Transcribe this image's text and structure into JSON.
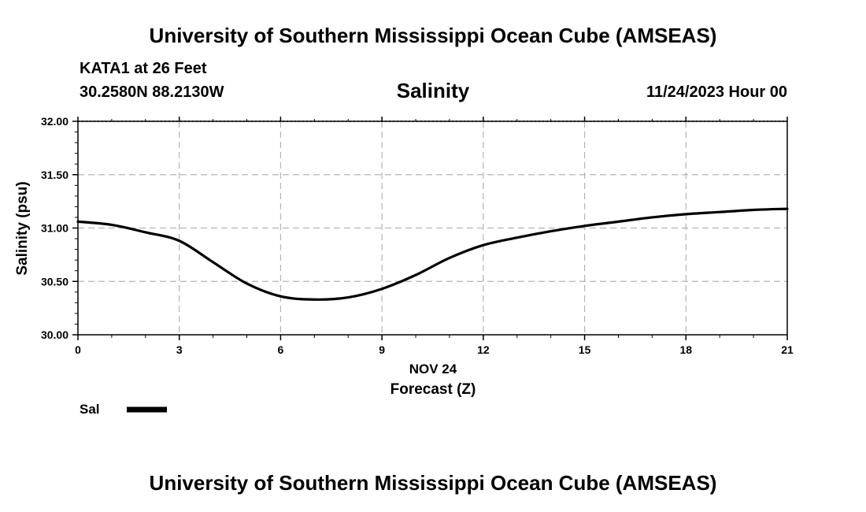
{
  "header": {
    "title": "University of Southern Mississippi Ocean Cube (AMSEAS)",
    "station": "KATA1 at 26 Feet",
    "coordinates": "30.2580N  88.2130W",
    "parameter": "Salinity",
    "datetime": "11/24/2023 Hour 00"
  },
  "footer": {
    "title": "University of Southern Mississippi Ocean Cube (AMSEAS)"
  },
  "chart_data": {
    "type": "line",
    "title": "Salinity",
    "xlabel": "Forecast (Z)",
    "xlabel_date": "NOV 24",
    "ylabel": "Salinity (psu)",
    "xlim": [
      0,
      21
    ],
    "ylim": [
      30.0,
      32.0
    ],
    "xticks": [
      0,
      3,
      6,
      9,
      12,
      15,
      18,
      21
    ],
    "yticks": [
      "30.00",
      "30.50",
      "31.00",
      "31.50",
      "32.00"
    ],
    "grid": true,
    "legend_position": "bottom-left",
    "series": [
      {
        "name": "Sal",
        "color": "#000000",
        "x": [
          0,
          1,
          2,
          3,
          4,
          5,
          6,
          7,
          8,
          9,
          10,
          11,
          12,
          13,
          14,
          15,
          16,
          17,
          18,
          19,
          20,
          21
        ],
        "values": [
          31.06,
          31.03,
          30.96,
          30.88,
          30.68,
          30.48,
          30.36,
          30.33,
          30.35,
          30.43,
          30.56,
          30.72,
          30.84,
          30.91,
          30.97,
          31.02,
          31.06,
          31.1,
          31.13,
          31.15,
          31.17,
          31.18
        ]
      }
    ]
  }
}
